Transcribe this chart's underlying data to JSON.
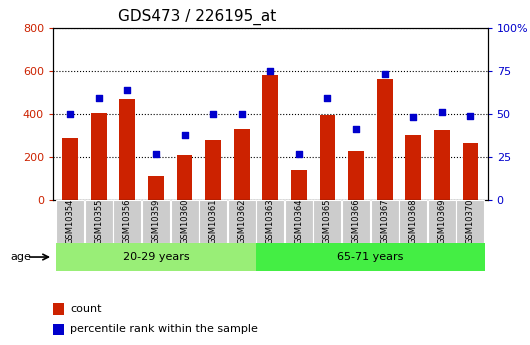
{
  "title": "GDS473 / 226195_at",
  "samples": [
    "GSM10354",
    "GSM10355",
    "GSM10356",
    "GSM10359",
    "GSM10360",
    "GSM10361",
    "GSM10362",
    "GSM10363",
    "GSM10364",
    "GSM10365",
    "GSM10366",
    "GSM10367",
    "GSM10368",
    "GSM10369",
    "GSM10370"
  ],
  "counts": [
    290,
    405,
    470,
    110,
    208,
    278,
    330,
    580,
    140,
    395,
    228,
    562,
    300,
    325,
    265
  ],
  "percentile_ranks": [
    50,
    59,
    64,
    27,
    38,
    50,
    50,
    75,
    27,
    59,
    41,
    73,
    48,
    51,
    49
  ],
  "bar_color": "#cc2200",
  "dot_color": "#0000cc",
  "ylim_left": [
    0,
    800
  ],
  "ylim_right": [
    0,
    100
  ],
  "yticks_left": [
    0,
    200,
    400,
    600,
    800
  ],
  "yticks_right": [
    0,
    25,
    50,
    75,
    100
  ],
  "ytick_labels_right": [
    "0",
    "25",
    "50",
    "75",
    "100%"
  ],
  "groups": [
    {
      "label": "20-29 years",
      "start": 0,
      "end": 7,
      "color": "#99ee77"
    },
    {
      "label": "65-71 years",
      "start": 7,
      "end": 15,
      "color": "#44ee44"
    }
  ],
  "age_label": "age",
  "legend_items": [
    {
      "label": "count",
      "color": "#cc2200"
    },
    {
      "label": "percentile rank within the sample",
      "color": "#0000cc"
    }
  ],
  "background_color": "#ffffff",
  "tick_label_color_left": "#cc2200",
  "tick_label_color_right": "#0000cc",
  "title_fontsize": 11,
  "tick_fontsize": 8,
  "bar_width": 0.55,
  "xticklabel_bg": "#cccccc",
  "group_bg_light": "#99ee77",
  "group_bg_dark": "#44ee44"
}
